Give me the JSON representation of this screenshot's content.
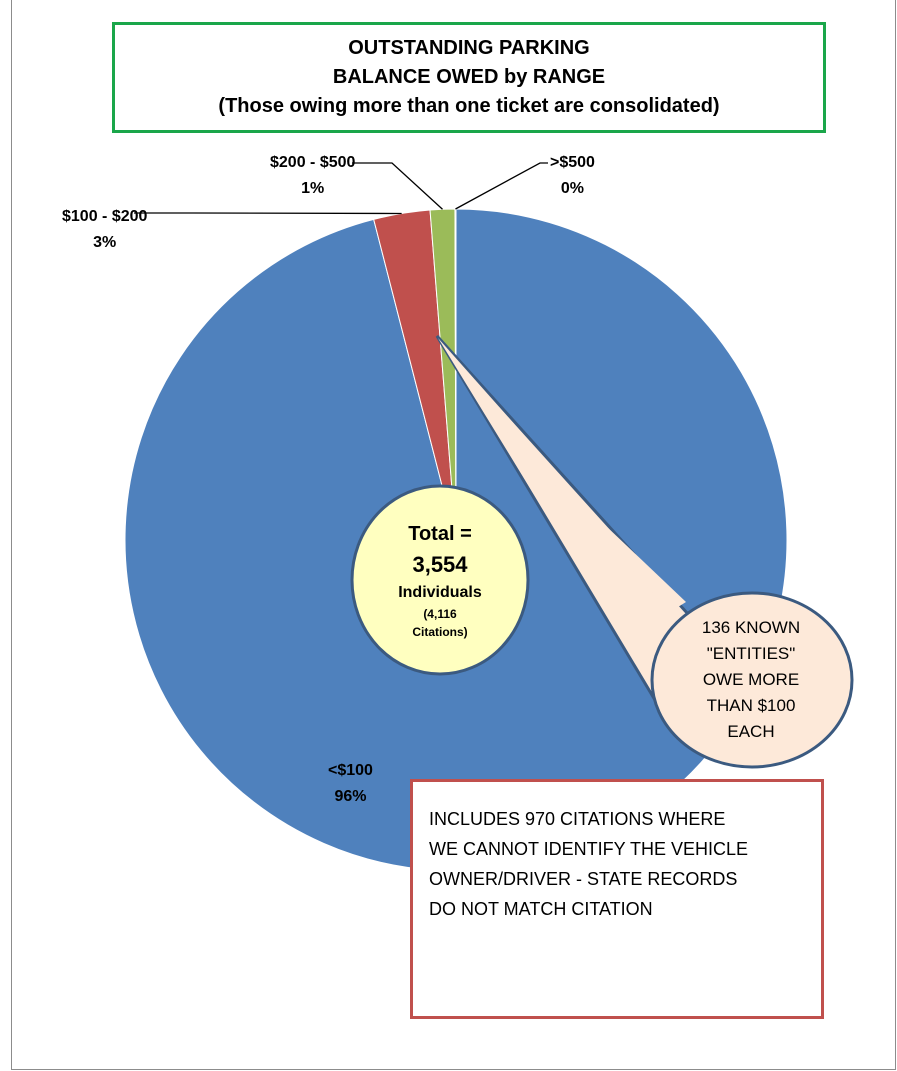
{
  "title_lines": [
    "OUTSTANDING PARKING",
    "BALANCE OWED by RANGE",
    "(Those owing more than one ticket are consolidated)"
  ],
  "chart_data": {
    "type": "pie",
    "title": "OUTSTANDING PARKING BALANCE OWED by RANGE",
    "subtitle": "(Those owing more than one ticket are consolidated)",
    "slices": [
      {
        "label": "<$100",
        "pct_label": "96%",
        "value": 96.0,
        "color": "#4f81bd"
      },
      {
        "label": "$100 - $200",
        "pct_label": "3%",
        "value": 2.75,
        "color": "#c0504d"
      },
      {
        "label": "$200 - $500",
        "pct_label": "1%",
        "value": 1.2,
        "color": "#9bbb59"
      },
      {
        "label": ">$500",
        "pct_label": "0%",
        "value": 0.05,
        "color": "#8064a2"
      }
    ]
  },
  "total_bubble": {
    "line1": "Total =",
    "line2": "3,554",
    "line3": "Individuals",
    "line4": "(4,116",
    "line5": "Citations)",
    "fill": "#ffffc0"
  },
  "callout": {
    "lines": [
      "136 KNOWN",
      "\"ENTITIES\"",
      "OWE MORE",
      "THAN $100",
      "EACH"
    ],
    "fill": "#fde9d9",
    "border": "#3b5a80"
  },
  "note": {
    "lines": [
      "INCLUDES 970 CITATIONS WHERE",
      "WE CANNOT IDENTIFY THE VEHICLE",
      "OWNER/DRIVER - STATE RECORDS",
      "DO NOT MATCH CITATION"
    ]
  }
}
